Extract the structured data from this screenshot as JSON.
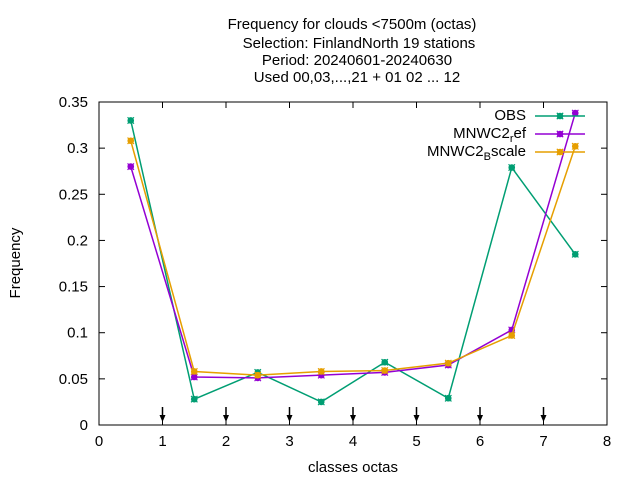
{
  "chart_data": {
    "type": "line",
    "title_lines": [
      "Frequency  for clouds <7500m (octas)",
      "Selection: FinlandNorth     19 stations",
      "Period: 20240601-20240630",
      "Used 00,03,...,21 + 01 02 ... 12"
    ],
    "xlabel": "classes octas",
    "ylabel": "Frequency",
    "xlim": [
      0,
      8
    ],
    "ylim": [
      0,
      0.35
    ],
    "xticks": [
      "0",
      "1",
      "2",
      "3",
      "4",
      "5",
      "6",
      "7",
      "8"
    ],
    "yticks": [
      "0",
      "0.05",
      "0.1",
      "0.15",
      "0.2",
      "0.25",
      "0.3",
      "0.35"
    ],
    "x": [
      0.5,
      1.5,
      2.5,
      3.5,
      4.5,
      5.5,
      6.5,
      7.5
    ],
    "arrow_marks_at": [
      1,
      2,
      3,
      4,
      5,
      6,
      7
    ],
    "legend_position": "top-right",
    "series": [
      {
        "name": "OBS",
        "color": "#009e73",
        "values": [
          0.33,
          0.028,
          0.057,
          0.025,
          0.068,
          0.029,
          0.279,
          0.185
        ]
      },
      {
        "name_main": "MNWC2",
        "name_sub": "r",
        "name_tail": "ef",
        "color": "#9400d3",
        "values": [
          0.28,
          0.052,
          0.051,
          0.054,
          0.057,
          0.065,
          0.103,
          0.338
        ]
      },
      {
        "name_main": "MNWC2",
        "name_sub": "B",
        "name_tail": "scale",
        "color": "#e69f00",
        "values": [
          0.308,
          0.058,
          0.054,
          0.058,
          0.059,
          0.067,
          0.097,
          0.302
        ]
      }
    ]
  }
}
